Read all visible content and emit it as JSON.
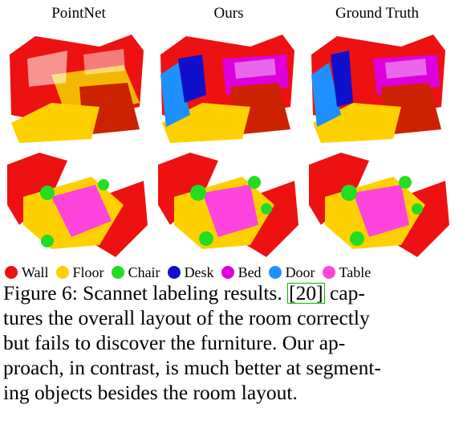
{
  "columns": [
    "PointNet",
    "Ours",
    "Ground Truth"
  ],
  "legend": [
    {
      "label": "Wall",
      "color": "#ee1111"
    },
    {
      "label": "Floor",
      "color": "#ffd000"
    },
    {
      "label": "Chair",
      "color": "#22dd22"
    },
    {
      "label": "Desk",
      "color": "#1010cc"
    },
    {
      "label": "Bed",
      "color": "#dd00dd"
    },
    {
      "label": "Door",
      "color": "#1e90ff"
    },
    {
      "label": "Table",
      "color": "#ff44dd"
    }
  ],
  "caption": {
    "line1_pre": "Figure 6: Scannet labeling results. ",
    "citation": "[20]",
    "line1_post": " cap-",
    "line2": "tures the overall layout of the room correctly",
    "line3": "but fails to discover the furniture.  Our ap-",
    "line4": "proach, in contrast, is much better at segment-",
    "line5": "ing objects besides the room layout."
  }
}
